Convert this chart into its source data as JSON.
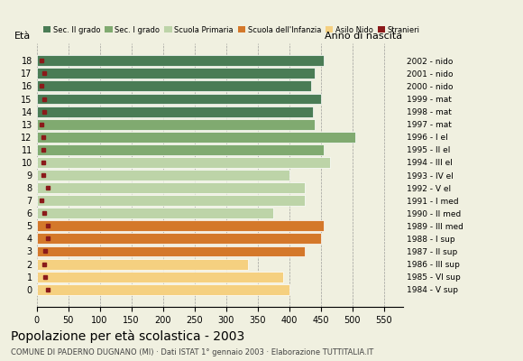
{
  "ages": [
    18,
    17,
    16,
    15,
    14,
    13,
    12,
    11,
    10,
    9,
    8,
    7,
    6,
    5,
    4,
    3,
    2,
    1,
    0
  ],
  "bar_values": [
    455,
    440,
    435,
    450,
    438,
    440,
    505,
    455,
    465,
    400,
    425,
    425,
    375,
    455,
    450,
    425,
    335,
    390,
    400
  ],
  "stranieri_values": [
    8,
    12,
    8,
    12,
    12,
    8,
    10,
    10,
    10,
    10,
    18,
    8,
    12,
    18,
    18,
    14,
    12,
    14,
    18
  ],
  "anno_labels": [
    "1984 - V sup",
    "1985 - VI sup",
    "1986 - III sup",
    "1987 - II sup",
    "1988 - I sup",
    "1989 - III med",
    "1990 - II med",
    "1991 - I med",
    "1992 - V el",
    "1993 - IV el",
    "1994 - III el",
    "1995 - II el",
    "1996 - I el",
    "1997 - mat",
    "1998 - mat",
    "1999 - mat",
    "2000 - nido",
    "2001 - nido",
    "2002 - nido"
  ],
  "colors": {
    "sec2": "#4a7c55",
    "sec1": "#80aa70",
    "primaria": "#bdd4a8",
    "infanzia": "#d4782a",
    "nido": "#f5d080",
    "stranieri": "#8b1a1a"
  },
  "legend_labels": [
    "Sec. II grado",
    "Sec. I grado",
    "Scuola Primaria",
    "Scuola dell'Infanzia",
    "Asilo Nido",
    "Stranieri"
  ],
  "title": "Popolazione per età scolastica - 2003",
  "subtitle": "COMUNE DI PADERNO DUGNANO (MI) · Dati ISTAT 1° gennaio 2003 · Elaborazione TUTTITALIA.IT",
  "ylabel_eta": "Età",
  "ylabel_anno": "Anno di nascita",
  "background_color": "#f0f0e0"
}
